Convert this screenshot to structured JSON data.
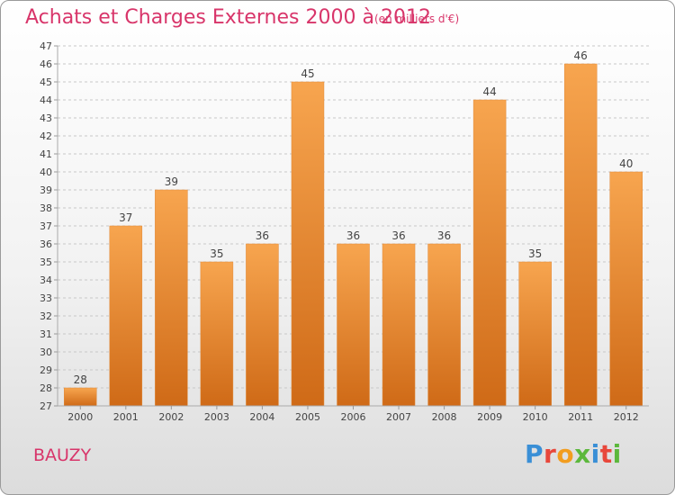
{
  "header": {
    "title": "Achats et Charges Externes 2000 à 2012",
    "unit": "(en milliers d'€)"
  },
  "footer": {
    "commune": "BAUZY",
    "logo": "Proxiti",
    "logo_colors": [
      "#3a8fd6",
      "#e8473b",
      "#f29d1f",
      "#5cb83c",
      "#3a8fd6",
      "#e8473b",
      "#5cb83c"
    ]
  },
  "chart_data": {
    "type": "bar",
    "title": "Achats et Charges Externes 2000 à 2012",
    "subtitle": "(en milliers d'€)",
    "categories": [
      "2000",
      "2001",
      "2002",
      "2003",
      "2004",
      "2005",
      "2006",
      "2007",
      "2008",
      "2009",
      "2010",
      "2011",
      "2012"
    ],
    "values": [
      28,
      37,
      39,
      35,
      36,
      45,
      36,
      36,
      36,
      44,
      35,
      46,
      40
    ],
    "ylim": [
      27,
      47
    ],
    "yticks": [
      27,
      28,
      29,
      30,
      31,
      32,
      33,
      34,
      35,
      36,
      37,
      38,
      39,
      40,
      41,
      42,
      43,
      44,
      45,
      46,
      47
    ],
    "grid": "horizontal-dashed",
    "bar_color_top": "#f7a54f",
    "bar_color_bottom": "#cf6a17"
  }
}
